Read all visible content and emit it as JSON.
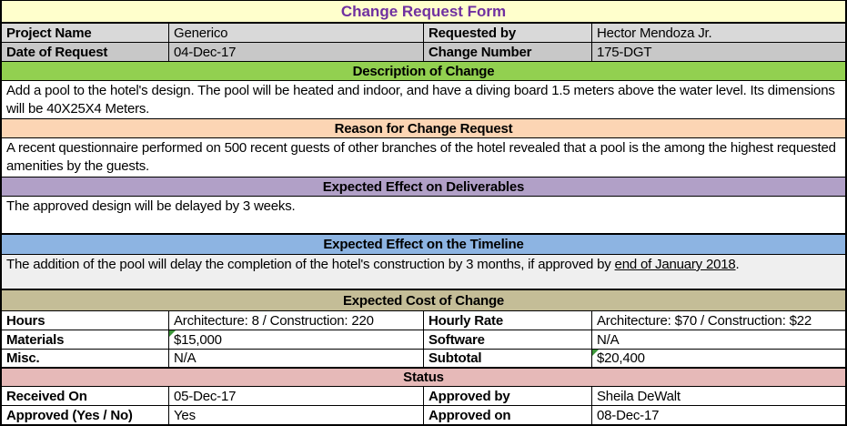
{
  "title": "Change Request Form",
  "colors": {
    "title_bg": "#FFFFCC",
    "title_text": "#7030A0",
    "info_row1_bg": "#D9D9D9",
    "info_row2_bg": "#C8C8C8",
    "description_header_bg": "#92D050",
    "reason_header_bg": "#FCD5B4",
    "deliverables_header_bg": "#B1A0C7",
    "timeline_header_bg": "#8DB4E2",
    "cost_header_bg": "#C4BD97",
    "status_header_bg": "#E6B9B8",
    "timeline_body_bg": "#EFEFEF",
    "comment_flag_green": "#3C9639"
  },
  "info": {
    "rows": [
      {
        "label1": "Project Name",
        "value1": "Generico",
        "label2": "Requested by",
        "value2": "Hector Mendoza Jr."
      },
      {
        "label1": "Date of Request",
        "value1": "04-Dec-17",
        "label2": "Change Number",
        "value2": "175-DGT"
      }
    ]
  },
  "sections": {
    "description": {
      "header": "Description of Change",
      "body": "Add a pool to the hotel's design. The pool will be heated and indoor, and have a diving board 1.5 meters above the water level. Its dimensions will be 40X25X4 Meters."
    },
    "reason": {
      "header": "Reason for Change Request",
      "body": "A recent questionnaire performed on 500 recent guests of other branches of the hotel revealed that a pool is the among the highest requested amenities by the guests."
    },
    "deliverables": {
      "header": "Expected Effect on Deliverables",
      "body": "The approved design will be delayed by 3 weeks."
    },
    "timeline": {
      "header": "Expected Effect on the Timeline",
      "body_before": "The addition of the pool will delay the completion of the hotel's construction by 3 months, if approved by ",
      "body_underlined": "end of January 2018",
      "body_after": "."
    }
  },
  "cost": {
    "header": "Expected Cost of Change",
    "rows": [
      {
        "label1": "Hours",
        "value1": "Architecture: 8 / Construction: 220",
        "flag1": false,
        "label2": "Hourly Rate",
        "value2": "Architecture: $70 / Construction: $22",
        "flag2": false
      },
      {
        "label1": "Materials",
        "value1": "$15,000",
        "flag1": true,
        "label2": "Software",
        "value2": "N/A",
        "flag2": false
      },
      {
        "label1": "Misc.",
        "value1": "N/A",
        "flag1": false,
        "label2": "Subtotal",
        "value2": "$20,400",
        "flag2": true
      }
    ]
  },
  "status": {
    "header": "Status",
    "rows": [
      {
        "label1": "Received On",
        "value1": "05-Dec-17",
        "label2": "Approved by",
        "value2": "Sheila DeWalt"
      },
      {
        "label1": "Approved (Yes / No)",
        "value1": "Yes",
        "label2": "Approved on",
        "value2": "08-Dec-17"
      }
    ]
  }
}
